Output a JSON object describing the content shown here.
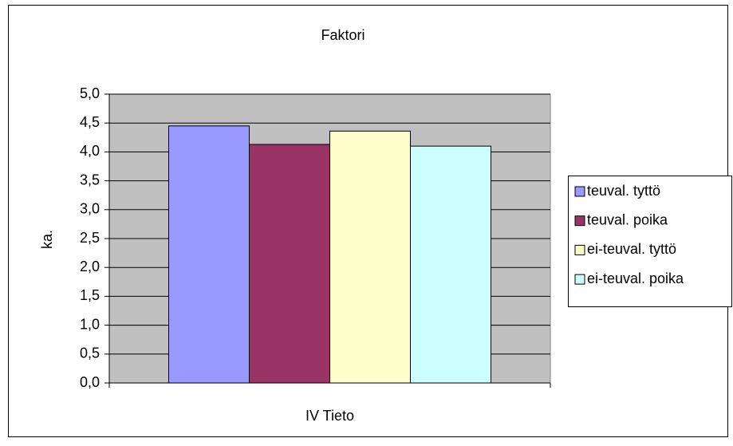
{
  "chart_data": {
    "type": "bar",
    "title": "Faktori",
    "ylabel": "ka.",
    "categories": [
      "IV Tieto"
    ],
    "series": [
      {
        "name": "teuval. tyttö",
        "color": "#9999ff",
        "values": [
          4.45
        ]
      },
      {
        "name": "teuval. poika",
        "color": "#993366",
        "values": [
          4.13
        ]
      },
      {
        "name": "ei-teuval. tyttö",
        "color": "#ffffcc",
        "values": [
          4.36
        ]
      },
      {
        "name": "ei-teuval. poika",
        "color": "#ccffff",
        "values": [
          4.1
        ]
      }
    ],
    "ylim": [
      0,
      5
    ],
    "yticks": [
      {
        "value": 0,
        "label": "0,0"
      },
      {
        "value": 0.5,
        "label": "0,5"
      },
      {
        "value": 1,
        "label": "1,0"
      },
      {
        "value": 1.5,
        "label": "1,5"
      },
      {
        "value": 2,
        "label": "2,0"
      },
      {
        "value": 2.5,
        "label": "2,5"
      },
      {
        "value": 3,
        "label": "3,0"
      },
      {
        "value": 3.5,
        "label": "3,5"
      },
      {
        "value": 4,
        "label": "4,0"
      },
      {
        "value": 4.5,
        "label": "4,5"
      },
      {
        "value": 5,
        "label": "5,0"
      }
    ],
    "grid": true,
    "plot_background": "#c0c0c0",
    "legend": "right"
  }
}
